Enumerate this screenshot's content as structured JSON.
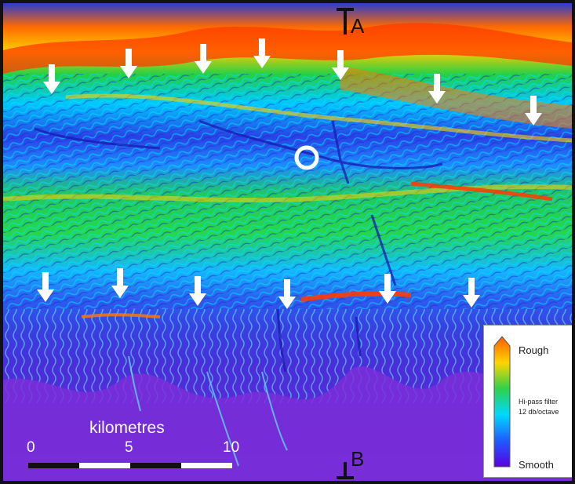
{
  "figure": {
    "section_labels": {
      "start": "A",
      "end": "B"
    },
    "scale_bar": {
      "title": "kilometres",
      "ticks": [
        "0",
        "5",
        "10"
      ]
    },
    "legend": {
      "top_label": "Rough",
      "filter_title": "Hi-pass filter",
      "filter_detail": "12 db/octave",
      "bottom_label": "Smooth",
      "ramp_colors": [
        "#ff5a00",
        "#ffd500",
        "#2fd04a",
        "#00d8ff",
        "#1e5cff",
        "#5a00e0"
      ]
    },
    "markers": {
      "arrow_count": 14,
      "circle_count": 1
    },
    "colors": {
      "rough": "#ff3b00",
      "medium": "#22d046",
      "smooth": "#5a2bd8",
      "arrows": "#ffffff"
    }
  }
}
